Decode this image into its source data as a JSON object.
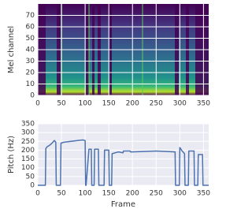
{
  "chart_data": [
    {
      "type": "heatmap",
      "ylabel": "Mel channel",
      "xlim": [
        0,
        361
      ],
      "xticks": [
        0,
        50,
        100,
        150,
        200,
        250,
        300,
        350
      ],
      "ylim": [
        0,
        80
      ],
      "yticks": [
        0,
        10,
        20,
        30,
        40,
        50,
        60,
        70
      ],
      "grid": true
    },
    {
      "type": "line",
      "xlabel": "Frame",
      "ylabel": "Pitch (Hz)",
      "color": "#4c72b0",
      "x": [
        0,
        16,
        17,
        20,
        25,
        30,
        35,
        38,
        39,
        48,
        49,
        55,
        70,
        85,
        95,
        100,
        101,
        102,
        108,
        113,
        114,
        119,
        120,
        128,
        129,
        140,
        141,
        150,
        151,
        156,
        157,
        170,
        180,
        181,
        195,
        196,
        200,
        250,
        290,
        291,
        299,
        300,
        305,
        310,
        311,
        318,
        319,
        330,
        331,
        338,
        339,
        348,
        349,
        361
      ],
      "values": [
        0,
        0,
        210,
        220,
        228,
        240,
        255,
        245,
        0,
        0,
        240,
        245,
        250,
        255,
        258,
        255,
        0,
        0,
        205,
        205,
        0,
        0,
        205,
        205,
        0,
        0,
        200,
        200,
        0,
        0,
        180,
        190,
        185,
        195,
        195,
        190,
        190,
        195,
        190,
        0,
        0,
        215,
        195,
        180,
        0,
        0,
        195,
        195,
        0,
        0,
        175,
        175,
        0,
        0
      ],
      "xlim": [
        0,
        361
      ],
      "xticks": [
        0,
        50,
        100,
        150,
        200,
        250,
        300,
        350
      ],
      "ylim": [
        0,
        350
      ],
      "yticks": [
        0,
        50,
        100,
        150,
        200,
        250,
        300,
        350
      ],
      "grid": true
    }
  ]
}
